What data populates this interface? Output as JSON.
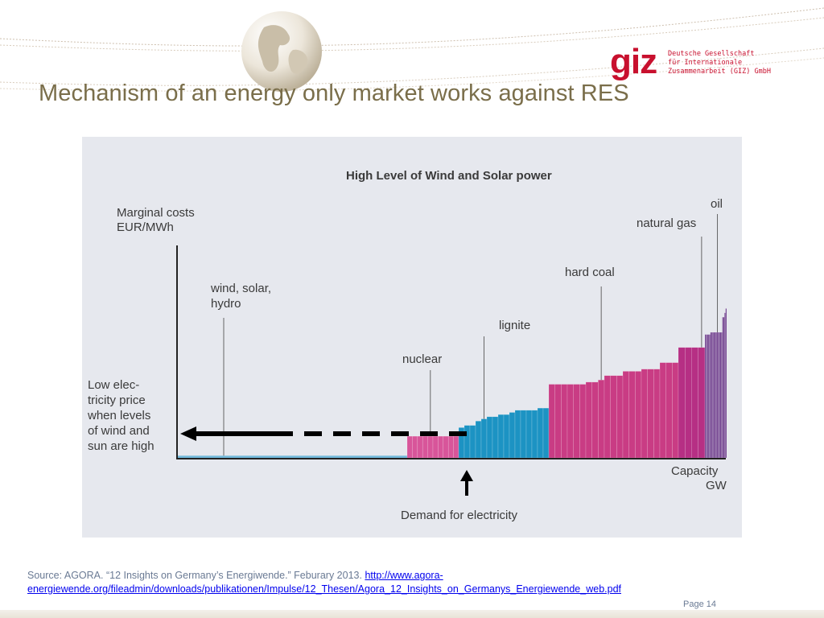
{
  "slide": {
    "title": "Mechanism of an energy only market works against RES",
    "page": "Page 14"
  },
  "logo": {
    "mark": "giz",
    "lines": [
      "Deutsche Gesellschaft",
      "für Internationale",
      "Zusammenarbeit (GIZ) GmbH"
    ]
  },
  "source": {
    "text": "Source: AGORA. “12 Insights on Germany’s Energiwende.” Feburary 2013.",
    "link_text": "http://www.agora-energiewende.org/fileadmin/downloads/publikationen/Impulse/12_Thesen/Agora_12_Insights_on_Germanys_Energiewende_web.pdf"
  },
  "colors": {
    "panel_bg": "#e6e8ee",
    "renewables": "#72b9db",
    "nuclear": "#d8559a",
    "lignite": "#1c93c3",
    "hard_coal": "#c93c84",
    "natural_gas": "#b62f84",
    "oil": "#6e3d8c",
    "title": "#7a6e4a",
    "brand_red": "#c8102e"
  },
  "chart_data": {
    "type": "bar",
    "title": "High Level of Wind and Solar power",
    "ylabel_lines": [
      "Marginal costs",
      "EUR/MWh"
    ],
    "xlabel_lines": [
      "Capacity",
      "GW"
    ],
    "demand_label": "Demand for electricity",
    "price_note_lines": [
      "Low elec-",
      "tricity price",
      "when levels",
      "of wind and",
      "sun are high"
    ],
    "categories": [
      {
        "name": "wind, solar, hydro",
        "label_lines": [
          "wind, solar,",
          "hydro"
        ],
        "color": "#72b9db",
        "start": 0,
        "end": 285,
        "costs": [
          1
        ]
      },
      {
        "name": "nuclear",
        "label_lines": [
          "nuclear"
        ],
        "color": "#d8559a",
        "start": 285,
        "end": 349,
        "costs": [
          10,
          10,
          10,
          10,
          10,
          10,
          10,
          10,
          10,
          10
        ]
      },
      {
        "name": "lignite",
        "label_lines": [
          "lignite"
        ],
        "color": "#1c93c3",
        "start": 349,
        "end": 461,
        "costs": [
          14,
          15,
          15,
          17,
          18,
          19,
          19,
          20,
          20,
          21,
          22,
          22,
          22,
          22,
          23,
          23
        ]
      },
      {
        "name": "hard coal",
        "label_lines": [
          "hard coal"
        ],
        "color": "#c93c84",
        "start": 461,
        "end": 622,
        "costs": [
          34,
          34,
          34,
          34,
          34,
          34,
          35,
          35,
          36,
          38,
          38,
          38,
          40,
          40,
          40,
          41,
          41,
          41,
          44,
          44,
          44
        ]
      },
      {
        "name": "natural gas",
        "label_lines": [
          "natural gas"
        ],
        "color": "#b62f84",
        "start": 622,
        "end": 655,
        "costs": [
          51,
          51,
          51,
          51
        ]
      },
      {
        "name": "oil",
        "label_lines": [
          "oil"
        ],
        "color": "#6e3d8c",
        "start": 655,
        "end": 682,
        "costs": [
          57,
          57,
          57,
          57,
          57,
          58,
          58,
          58,
          58,
          58,
          58,
          58,
          58,
          58,
          58,
          58,
          65,
          65,
          67,
          69
        ]
      }
    ],
    "demand_x": 358,
    "price_level": 10,
    "xlim": [
      0,
      682
    ],
    "ylim": [
      0,
      100
    ],
    "ticks_shown": false,
    "grid": false
  }
}
